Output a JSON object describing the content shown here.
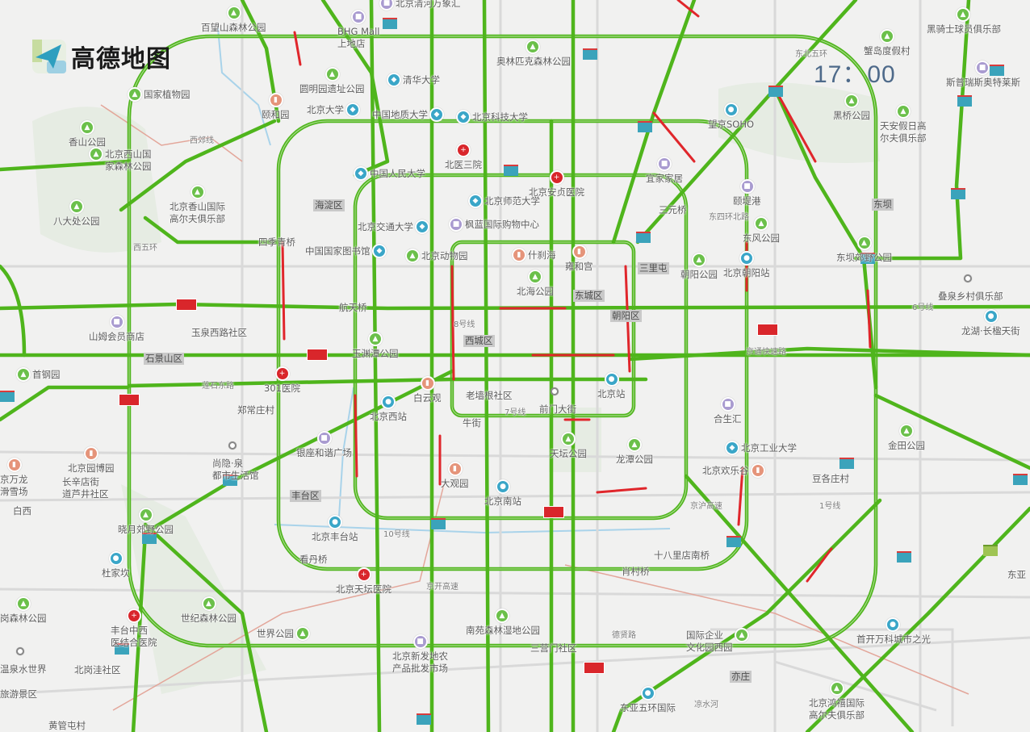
{
  "brand": {
    "name": "高德地图",
    "logo_icon": "paper-plane-icon"
  },
  "clock": {
    "time": "17：00"
  },
  "colors": {
    "traffic_smooth": "#4fb51c",
    "traffic_congested": "#e0262b",
    "shield": "#3ba3bb"
  },
  "pois": [
    {
      "label": "百望山森林公园",
      "icon": "park-icon"
    },
    {
      "label": "BHG Mall\n上地店",
      "icon": "mall-icon"
    },
    {
      "label": "北京清河万象汇",
      "icon": "mall-icon"
    },
    {
      "label": "奥林匹克森林公园",
      "icon": "park-icon"
    },
    {
      "label": "黑骑士球员俱乐部",
      "icon": "park-icon"
    },
    {
      "label": "蟹岛度假村",
      "icon": "park-icon"
    },
    {
      "label": "斯普瑞斯奥特莱斯",
      "icon": "mall-icon"
    },
    {
      "label": "圆明园遗址公园",
      "icon": "park-icon"
    },
    {
      "label": "清华大学",
      "icon": "school-icon"
    },
    {
      "label": "颐和园",
      "icon": "heritage-icon"
    },
    {
      "label": "国家植物园",
      "icon": "park-icon"
    },
    {
      "label": "北京大学",
      "icon": "school-icon"
    },
    {
      "label": "中国地质大学",
      "icon": "school-icon"
    },
    {
      "label": "北京科技大学",
      "icon": "school-icon"
    },
    {
      "label": "望京SOHO",
      "icon": "station-icon"
    },
    {
      "label": "黑桥公园",
      "icon": "park-icon"
    },
    {
      "label": "天安假日高\n尔夫俱乐部",
      "icon": "park-icon"
    },
    {
      "label": "香山公园",
      "icon": "park-icon"
    },
    {
      "label": "北医三院",
      "icon": "hospital-icon"
    },
    {
      "label": "北京西山国\n家森林公园",
      "icon": "park-icon"
    },
    {
      "label": "中国人民大学",
      "icon": "school-icon"
    },
    {
      "label": "北京安贞医院",
      "icon": "hospital-icon"
    },
    {
      "label": "宜家家居",
      "icon": "mall-icon"
    },
    {
      "label": "颐堤港",
      "icon": "mall-icon"
    },
    {
      "label": "北京香山国际\n高尔夫俱乐部",
      "icon": "park-icon"
    },
    {
      "label": "北京师范大学",
      "icon": "school-icon"
    },
    {
      "label": "八大处公园",
      "icon": "park-icon"
    },
    {
      "label": "北京交通大学",
      "icon": "school-icon"
    },
    {
      "label": "枫蓝国际购物中心",
      "icon": "mall-icon"
    },
    {
      "label": "东风公园",
      "icon": "park-icon"
    },
    {
      "label": "东坝郊野公园",
      "icon": "park-icon"
    },
    {
      "label": "四季青桥",
      "icon": ""
    },
    {
      "label": "中国国家图书馆",
      "icon": "school-icon"
    },
    {
      "label": "北京动物园",
      "icon": "park-icon"
    },
    {
      "label": "什刹海",
      "icon": "heritage-icon"
    },
    {
      "label": "雍和宫",
      "icon": "heritage-icon"
    },
    {
      "label": "朝阳公园",
      "icon": "park-icon"
    },
    {
      "label": "北京朝阳站",
      "icon": "station-icon"
    },
    {
      "label": "叠泉乡村俱乐部",
      "icon": "dot-icon"
    },
    {
      "label": "北海公园",
      "icon": "park-icon"
    },
    {
      "label": "龙湖·长楹天街",
      "icon": "station-icon"
    },
    {
      "label": "航天桥",
      "icon": ""
    },
    {
      "label": "山姆会员商店",
      "icon": "mall-icon"
    },
    {
      "label": "玉泉西路社区",
      "icon": ""
    },
    {
      "label": "玉渊潭公园",
      "icon": "park-icon"
    },
    {
      "label": "首钢园",
      "icon": "park-icon"
    },
    {
      "label": "301医院",
      "icon": "hospital-icon"
    },
    {
      "label": "白云观",
      "icon": "heritage-icon"
    },
    {
      "label": "北京西站",
      "icon": "station-icon"
    },
    {
      "label": "老墙根社区",
      "icon": ""
    },
    {
      "label": "前门大街",
      "icon": "dot-icon"
    },
    {
      "label": "北京站",
      "icon": "station-icon"
    },
    {
      "label": "合生汇",
      "icon": "mall-icon"
    },
    {
      "label": "郑常庄村",
      "icon": ""
    },
    {
      "label": "牛街",
      "icon": ""
    },
    {
      "label": "银座和谐广场",
      "icon": "mall-icon"
    },
    {
      "label": "天坛公园",
      "icon": "park-icon"
    },
    {
      "label": "龙潭公园",
      "icon": "park-icon"
    },
    {
      "label": "北京工业大学",
      "icon": "school-icon"
    },
    {
      "label": "北京园博园",
      "icon": "heritage-icon"
    },
    {
      "label": "尚隐·泉\n都市生活馆",
      "icon": "dot-icon"
    },
    {
      "label": "京万龙\n滑雪场",
      "icon": "heritage-icon"
    },
    {
      "label": "北京欢乐谷",
      "icon": "heritage-icon"
    },
    {
      "label": "金田公园",
      "icon": "park-icon"
    },
    {
      "label": "大观园",
      "icon": "heritage-icon"
    },
    {
      "label": "豆各庄村",
      "icon": ""
    },
    {
      "label": "长辛店街\n道芦井社区",
      "icon": ""
    },
    {
      "label": "北京南站",
      "icon": "station-icon"
    },
    {
      "label": "白西",
      "icon": ""
    },
    {
      "label": "晓月郊野公园",
      "icon": "park-icon"
    },
    {
      "label": "北京丰台站",
      "icon": "station-icon"
    },
    {
      "label": "看丹桥",
      "icon": ""
    },
    {
      "label": "杜家坎",
      "icon": "station-icon"
    },
    {
      "label": "十八里店南桥",
      "icon": ""
    },
    {
      "label": "肖村桥",
      "icon": ""
    },
    {
      "label": "北京天坛医院",
      "icon": "hospital-icon"
    },
    {
      "label": "东亚",
      "icon": ""
    },
    {
      "label": "世纪森林公园",
      "icon": "park-icon"
    },
    {
      "label": "南苑森林湿地公园",
      "icon": "park-icon"
    },
    {
      "label": "岗森林公园",
      "icon": "park-icon"
    },
    {
      "label": "丰台中西\n医结合医院",
      "icon": "hospital-icon"
    },
    {
      "label": "首开万科城市之光",
      "icon": "station-icon"
    },
    {
      "label": "世界公园",
      "icon": "park-icon"
    },
    {
      "label": "北京新发地农\n产品批发市场",
      "icon": "mall-icon"
    },
    {
      "label": "国际企业\n文化园西园",
      "icon": "park-icon"
    },
    {
      "label": "三营门社区",
      "icon": ""
    },
    {
      "label": "温泉水世界",
      "icon": "dot-icon"
    },
    {
      "label": "北岗洼社区",
      "icon": ""
    },
    {
      "label": "旅游景区",
      "icon": "heritage-icon"
    },
    {
      "label": "北京鸿禧国际\n高尔夫俱乐部",
      "icon": "park-icon"
    },
    {
      "label": "东亚五环国际",
      "icon": "station-icon"
    },
    {
      "label": "黄管屯村",
      "icon": ""
    },
    {
      "label": "三元桥",
      "icon": ""
    }
  ],
  "districts": [
    "海淀区",
    "东坝",
    "三里屯",
    "东城区",
    "朝阳区",
    "西城区",
    "石景山区",
    "丰台区",
    "亦庄"
  ],
  "road_labels": [
    "京通快速路",
    "莲石东路",
    "西五环",
    "6号线",
    "10号线",
    "8号线",
    "7号线",
    "1号线",
    "西郊线",
    "京开高速",
    "德贤路",
    "凉水河",
    "东四环北路",
    "京沪高速",
    "东北五环"
  ]
}
